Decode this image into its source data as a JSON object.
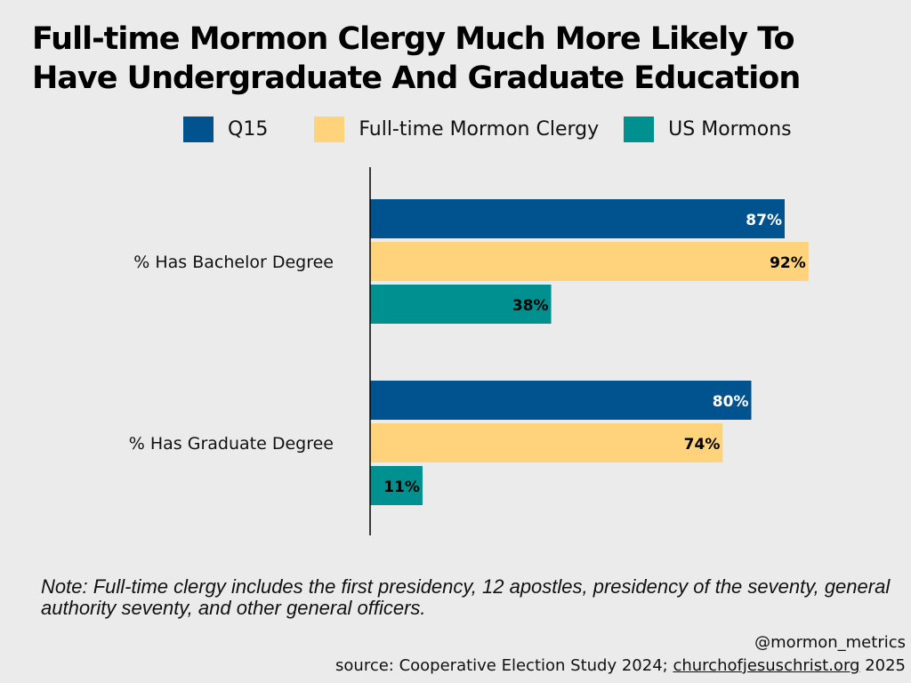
{
  "chart_data": {
    "type": "bar",
    "orientation": "horizontal",
    "title": "Full-time Mormon Clergy Much More Likely To Have Undergraduate And Graduate Education",
    "categories": [
      "% Has Bachelor Degree",
      "% Has Graduate Degree"
    ],
    "series": [
      {
        "name": "Q15",
        "color": "#00538f",
        "label_color": "#ffffff",
        "values": [
          87,
          80
        ],
        "labels": [
          "87%",
          "80%"
        ]
      },
      {
        "name": "Full-time Mormon Clergy",
        "color": "#fed37b",
        "label_color": "#000000",
        "values": [
          92,
          74
        ],
        "labels": [
          "92%",
          "74%"
        ]
      },
      {
        "name": "US Mormons",
        "color": "#009090",
        "label_color": "#000000",
        "values": [
          38,
          11
        ],
        "labels": [
          "38%",
          "11%"
        ]
      }
    ],
    "xlim": [
      0,
      100
    ],
    "grid": false,
    "legend_position": "top"
  },
  "note": "Note: Full-time clergy includes the first presidency, 12 apostles, presidency of the seventy, general authority seventy, and other general officers.",
  "credit": {
    "handle": "@mormon_metrics",
    "source_prefix": "source: Cooperative Election Study 2024;",
    "source_link": "churchofjesuschrist.org",
    "source_suffix": "2025"
  }
}
